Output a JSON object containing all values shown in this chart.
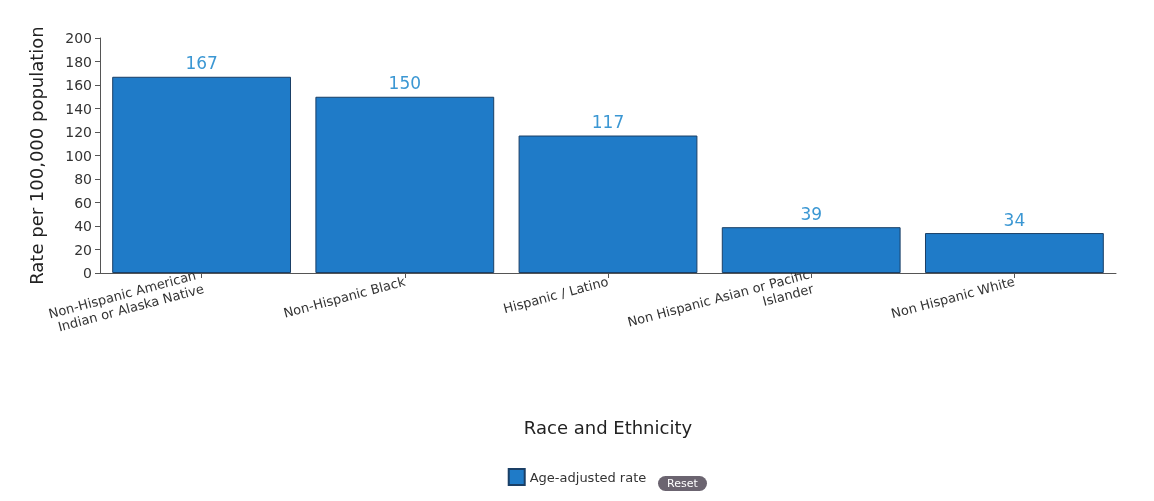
{
  "chart_data": {
    "type": "bar",
    "ylabel": "Rate per 100,000 population",
    "xlabel": "Race and Ethnicity",
    "categories": [
      "Non-Hispanic American Indian or Alaska Native",
      "Non-Hispanic Black",
      "Hispanic / Latino",
      "Non Hispanic Asian or Pacific Islander",
      "Non Hispanic White"
    ],
    "series": [
      {
        "name": "Age-adjusted rate",
        "color": "#1f7bc8",
        "values": [
          167,
          150,
          117,
          39,
          34
        ]
      }
    ],
    "data_labels": true,
    "ylim": [
      0,
      200
    ],
    "yticks": [
      0,
      20,
      40,
      60,
      80,
      100,
      120,
      140,
      160,
      180,
      200
    ],
    "grid": false,
    "legend": "bottom",
    "annotations": [
      "Reset"
    ]
  }
}
